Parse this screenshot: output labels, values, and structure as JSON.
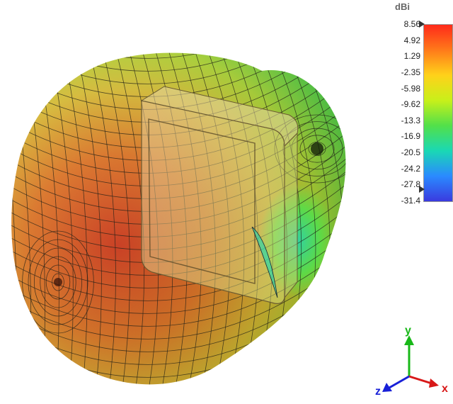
{
  "colorbar": {
    "unit": "dBi",
    "ticks": [
      "8.56",
      "4.92",
      "1.29",
      "-2.35",
      "-5.98",
      "-9.62",
      "-13.3",
      "-16.9",
      "-20.5",
      "-24.2",
      "-27.8",
      "-31.4"
    ],
    "colors": [
      "#ff2a1a",
      "#ff7a1a",
      "#ffd21a",
      "#c8f01a",
      "#52e04a",
      "#1ad8b4",
      "#2a8aff",
      "#3a3adf"
    ]
  },
  "axes": {
    "x_label": "x",
    "y_label": "y",
    "z_label": "z",
    "x_color": "#d81818",
    "y_color": "#18b818",
    "z_color": "#1820d8"
  },
  "pattern": {
    "mesh_color": "#202018",
    "device_color": "#d8c878"
  }
}
